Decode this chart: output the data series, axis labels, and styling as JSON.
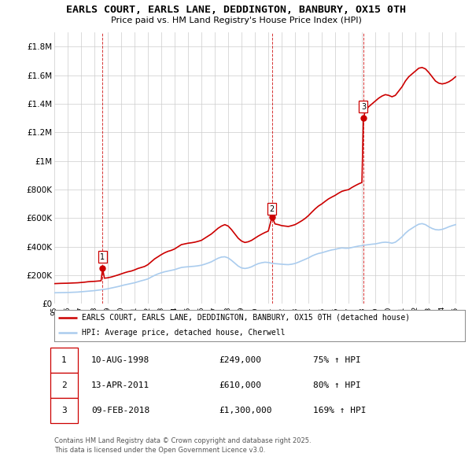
{
  "title": "EARLS COURT, EARLS LANE, DEDDINGTON, BANBURY, OX15 0TH",
  "subtitle": "Price paid vs. HM Land Registry's House Price Index (HPI)",
  "ylim": [
    0,
    1900000
  ],
  "yticks": [
    0,
    200000,
    400000,
    600000,
    800000,
    1000000,
    1200000,
    1400000,
    1600000,
    1800000
  ],
  "ytick_labels": [
    "£0",
    "£200K",
    "£400K",
    "£600K",
    "£800K",
    "£1M",
    "£1.2M",
    "£1.4M",
    "£1.6M",
    "£1.8M"
  ],
  "xlim_start": 1995.0,
  "xlim_end": 2025.7,
  "background_color": "#ffffff",
  "grid_color": "#cccccc",
  "sale_color": "#cc0000",
  "hpi_color": "#aaccee",
  "legend_label_property": "EARLS COURT, EARLS LANE, DEDDINGTON, BANBURY, OX15 0TH (detached house)",
  "legend_label_hpi": "HPI: Average price, detached house, Cherwell",
  "footer_line1": "Contains HM Land Registry data © Crown copyright and database right 2025.",
  "footer_line2": "This data is licensed under the Open Government Licence v3.0.",
  "sales": [
    {
      "num": 1,
      "year": 1998.61,
      "price": 249000,
      "label": "10-AUG-1998",
      "price_str": "£249,000",
      "hpi_str": "75% ↑ HPI"
    },
    {
      "num": 2,
      "year": 2011.28,
      "price": 610000,
      "label": "13-APR-2011",
      "price_str": "£610,000",
      "hpi_str": "80% ↑ HPI"
    },
    {
      "num": 3,
      "year": 2018.11,
      "price": 1300000,
      "label": "09-FEB-2018",
      "price_str": "£1,300,000",
      "hpi_str": "169% ↑ HPI"
    }
  ],
  "property_prices": [
    [
      1995.0,
      142000
    ],
    [
      1995.25,
      143000
    ],
    [
      1995.5,
      144000
    ],
    [
      1995.75,
      144500
    ],
    [
      1996.0,
      145000
    ],
    [
      1996.25,
      146000
    ],
    [
      1996.5,
      147000
    ],
    [
      1996.75,
      148000
    ],
    [
      1997.0,
      150000
    ],
    [
      1997.25,
      152000
    ],
    [
      1997.5,
      155000
    ],
    [
      1997.75,
      157000
    ],
    [
      1998.0,
      158000
    ],
    [
      1998.25,
      160000
    ],
    [
      1998.5,
      162000
    ],
    [
      1998.61,
      249000
    ],
    [
      1998.75,
      180000
    ],
    [
      1999.0,
      183000
    ],
    [
      1999.25,
      188000
    ],
    [
      1999.5,
      195000
    ],
    [
      1999.75,
      202000
    ],
    [
      2000.0,
      210000
    ],
    [
      2000.25,
      218000
    ],
    [
      2000.5,
      225000
    ],
    [
      2000.75,
      230000
    ],
    [
      2001.0,
      238000
    ],
    [
      2001.25,
      248000
    ],
    [
      2001.5,
      255000
    ],
    [
      2001.75,
      262000
    ],
    [
      2002.0,
      275000
    ],
    [
      2002.25,
      295000
    ],
    [
      2002.5,
      315000
    ],
    [
      2002.75,
      330000
    ],
    [
      2003.0,
      345000
    ],
    [
      2003.25,
      358000
    ],
    [
      2003.5,
      368000
    ],
    [
      2003.75,
      375000
    ],
    [
      2004.0,
      385000
    ],
    [
      2004.25,
      400000
    ],
    [
      2004.5,
      415000
    ],
    [
      2004.75,
      420000
    ],
    [
      2005.0,
      425000
    ],
    [
      2005.25,
      428000
    ],
    [
      2005.5,
      432000
    ],
    [
      2005.75,
      438000
    ],
    [
      2006.0,
      445000
    ],
    [
      2006.25,
      460000
    ],
    [
      2006.5,
      475000
    ],
    [
      2006.75,
      490000
    ],
    [
      2007.0,
      510000
    ],
    [
      2007.25,
      530000
    ],
    [
      2007.5,
      545000
    ],
    [
      2007.75,
      555000
    ],
    [
      2008.0,
      545000
    ],
    [
      2008.25,
      520000
    ],
    [
      2008.5,
      490000
    ],
    [
      2008.75,
      460000
    ],
    [
      2009.0,
      440000
    ],
    [
      2009.25,
      430000
    ],
    [
      2009.5,
      435000
    ],
    [
      2009.75,
      445000
    ],
    [
      2010.0,
      460000
    ],
    [
      2010.25,
      475000
    ],
    [
      2010.5,
      488000
    ],
    [
      2010.75,
      500000
    ],
    [
      2011.0,
      510000
    ],
    [
      2011.28,
      610000
    ],
    [
      2011.5,
      560000
    ],
    [
      2011.75,
      555000
    ],
    [
      2012.0,
      548000
    ],
    [
      2012.25,
      545000
    ],
    [
      2012.5,
      542000
    ],
    [
      2012.75,
      548000
    ],
    [
      2013.0,
      555000
    ],
    [
      2013.25,
      568000
    ],
    [
      2013.5,
      582000
    ],
    [
      2013.75,
      598000
    ],
    [
      2014.0,
      618000
    ],
    [
      2014.25,
      642000
    ],
    [
      2014.5,
      665000
    ],
    [
      2014.75,
      685000
    ],
    [
      2015.0,
      700000
    ],
    [
      2015.25,
      718000
    ],
    [
      2015.5,
      735000
    ],
    [
      2015.75,
      748000
    ],
    [
      2016.0,
      760000
    ],
    [
      2016.25,
      775000
    ],
    [
      2016.5,
      788000
    ],
    [
      2016.75,
      795000
    ],
    [
      2017.0,
      800000
    ],
    [
      2017.25,
      815000
    ],
    [
      2017.5,
      828000
    ],
    [
      2017.75,
      840000
    ],
    [
      2018.0,
      850000
    ],
    [
      2018.11,
      1300000
    ],
    [
      2018.25,
      1350000
    ],
    [
      2018.5,
      1380000
    ],
    [
      2018.75,
      1400000
    ],
    [
      2019.0,
      1420000
    ],
    [
      2019.25,
      1440000
    ],
    [
      2019.5,
      1455000
    ],
    [
      2019.75,
      1465000
    ],
    [
      2020.0,
      1460000
    ],
    [
      2020.25,
      1450000
    ],
    [
      2020.5,
      1460000
    ],
    [
      2020.75,
      1490000
    ],
    [
      2021.0,
      1520000
    ],
    [
      2021.25,
      1560000
    ],
    [
      2021.5,
      1590000
    ],
    [
      2021.75,
      1610000
    ],
    [
      2022.0,
      1630000
    ],
    [
      2022.25,
      1650000
    ],
    [
      2022.5,
      1655000
    ],
    [
      2022.75,
      1645000
    ],
    [
      2023.0,
      1620000
    ],
    [
      2023.25,
      1590000
    ],
    [
      2023.5,
      1560000
    ],
    [
      2023.75,
      1545000
    ],
    [
      2024.0,
      1540000
    ],
    [
      2024.25,
      1545000
    ],
    [
      2024.5,
      1555000
    ],
    [
      2024.75,
      1570000
    ],
    [
      2025.0,
      1590000
    ]
  ],
  "hpi_prices": [
    [
      1995.0,
      78000
    ],
    [
      1995.25,
      78500
    ],
    [
      1995.5,
      79000
    ],
    [
      1995.75,
      79500
    ],
    [
      1996.0,
      80000
    ],
    [
      1996.25,
      81000
    ],
    [
      1996.5,
      82000
    ],
    [
      1996.75,
      83000
    ],
    [
      1997.0,
      85000
    ],
    [
      1997.25,
      87000
    ],
    [
      1997.5,
      89000
    ],
    [
      1997.75,
      91000
    ],
    [
      1998.0,
      93000
    ],
    [
      1998.25,
      96000
    ],
    [
      1998.5,
      99000
    ],
    [
      1998.75,
      102000
    ],
    [
      1999.0,
      106000
    ],
    [
      1999.25,
      111000
    ],
    [
      1999.5,
      116000
    ],
    [
      1999.75,
      121000
    ],
    [
      2000.0,
      127000
    ],
    [
      2000.25,
      133000
    ],
    [
      2000.5,
      138000
    ],
    [
      2000.75,
      143000
    ],
    [
      2001.0,
      148000
    ],
    [
      2001.25,
      155000
    ],
    [
      2001.5,
      162000
    ],
    [
      2001.75,
      168000
    ],
    [
      2002.0,
      175000
    ],
    [
      2002.25,
      188000
    ],
    [
      2002.5,
      200000
    ],
    [
      2002.75,
      210000
    ],
    [
      2003.0,
      218000
    ],
    [
      2003.25,
      225000
    ],
    [
      2003.5,
      230000
    ],
    [
      2003.75,
      235000
    ],
    [
      2004.0,
      240000
    ],
    [
      2004.25,
      248000
    ],
    [
      2004.5,
      255000
    ],
    [
      2004.75,
      258000
    ],
    [
      2005.0,
      260000
    ],
    [
      2005.25,
      262000
    ],
    [
      2005.5,
      264000
    ],
    [
      2005.75,
      267000
    ],
    [
      2006.0,
      271000
    ],
    [
      2006.25,
      278000
    ],
    [
      2006.5,
      286000
    ],
    [
      2006.75,
      295000
    ],
    [
      2007.0,
      308000
    ],
    [
      2007.25,
      320000
    ],
    [
      2007.5,
      328000
    ],
    [
      2007.75,
      330000
    ],
    [
      2008.0,
      322000
    ],
    [
      2008.25,
      305000
    ],
    [
      2008.5,
      285000
    ],
    [
      2008.75,
      265000
    ],
    [
      2009.0,
      252000
    ],
    [
      2009.25,
      248000
    ],
    [
      2009.5,
      252000
    ],
    [
      2009.75,
      260000
    ],
    [
      2010.0,
      272000
    ],
    [
      2010.25,
      282000
    ],
    [
      2010.5,
      288000
    ],
    [
      2010.75,
      292000
    ],
    [
      2011.0,
      290000
    ],
    [
      2011.25,
      285000
    ],
    [
      2011.5,
      282000
    ],
    [
      2011.75,
      280000
    ],
    [
      2012.0,
      278000
    ],
    [
      2012.25,
      276000
    ],
    [
      2012.5,
      275000
    ],
    [
      2012.75,
      278000
    ],
    [
      2013.0,
      283000
    ],
    [
      2013.25,
      292000
    ],
    [
      2013.5,
      302000
    ],
    [
      2013.75,
      312000
    ],
    [
      2014.0,
      322000
    ],
    [
      2014.25,
      335000
    ],
    [
      2014.5,
      345000
    ],
    [
      2014.75,
      353000
    ],
    [
      2015.0,
      358000
    ],
    [
      2015.25,
      365000
    ],
    [
      2015.5,
      372000
    ],
    [
      2015.75,
      378000
    ],
    [
      2016.0,
      382000
    ],
    [
      2016.25,
      388000
    ],
    [
      2016.5,
      392000
    ],
    [
      2016.75,
      390000
    ],
    [
      2017.0,
      390000
    ],
    [
      2017.25,
      395000
    ],
    [
      2017.5,
      400000
    ],
    [
      2017.75,
      405000
    ],
    [
      2018.0,
      408000
    ],
    [
      2018.25,
      412000
    ],
    [
      2018.5,
      415000
    ],
    [
      2018.75,
      418000
    ],
    [
      2019.0,
      420000
    ],
    [
      2019.25,
      425000
    ],
    [
      2019.5,
      430000
    ],
    [
      2019.75,
      432000
    ],
    [
      2020.0,
      430000
    ],
    [
      2020.25,
      425000
    ],
    [
      2020.5,
      432000
    ],
    [
      2020.75,
      450000
    ],
    [
      2021.0,
      470000
    ],
    [
      2021.25,
      495000
    ],
    [
      2021.5,
      515000
    ],
    [
      2021.75,
      530000
    ],
    [
      2022.0,
      545000
    ],
    [
      2022.25,
      558000
    ],
    [
      2022.5,
      562000
    ],
    [
      2022.75,
      555000
    ],
    [
      2023.0,
      540000
    ],
    [
      2023.25,
      528000
    ],
    [
      2023.5,
      520000
    ],
    [
      2023.75,
      518000
    ],
    [
      2024.0,
      522000
    ],
    [
      2024.25,
      530000
    ],
    [
      2024.5,
      540000
    ],
    [
      2024.75,
      548000
    ],
    [
      2025.0,
      555000
    ]
  ]
}
